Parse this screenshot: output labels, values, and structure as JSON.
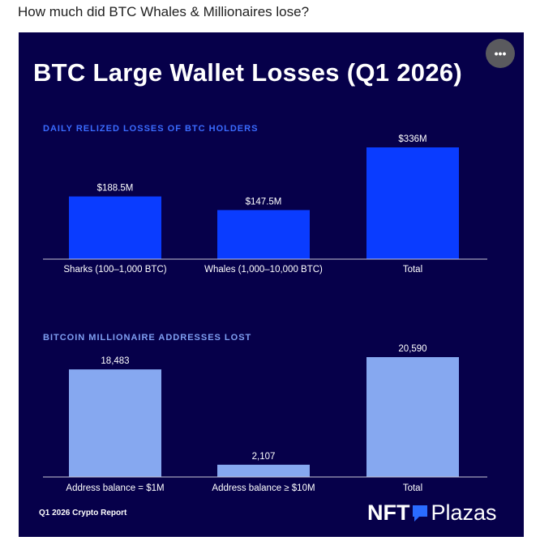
{
  "question": "How much did BTC Whales & Millionaires lose?",
  "card": {
    "title": "BTC Large Wallet Losses (Q1 2026)",
    "more_label": "•••",
    "footer_left": "Q1 2026 Crypto Report",
    "brand_nft": "NFT",
    "brand_plazas": "Plazas"
  },
  "colors": {
    "background": "#06004a",
    "bar_top": "#0a3cff",
    "bar_bottom": "#86a8f0",
    "section_top": "#3a6bff",
    "section_bottom": "#7f9ff2",
    "brand_mark": "#2a6cff"
  },
  "chart_data": [
    {
      "type": "bar",
      "title": "DAILY RELIZED LOSSES OF BTC HOLDERS",
      "categories": [
        "Sharks (100–1,000 BTC)",
        "Whales (1,000–10,000 BTC)",
        "Total"
      ],
      "values": [
        188.5,
        147.5,
        336
      ],
      "value_labels": [
        "$188.5M",
        "$147.5M",
        "$336M"
      ],
      "unit": "$M",
      "ylim": [
        0,
        336
      ],
      "grid": false,
      "legend": "none"
    },
    {
      "type": "bar",
      "title": "BITCOIN MILLIONAIRE ADDRESSES LOST",
      "categories": [
        "Address balance = $1M",
        "Address balance ≥ $10M",
        "Total"
      ],
      "values": [
        18483,
        2107,
        20590
      ],
      "value_labels": [
        "18,483",
        "2,107",
        "20,590"
      ],
      "ylim": [
        0,
        20590
      ],
      "grid": false,
      "legend": "none"
    }
  ]
}
